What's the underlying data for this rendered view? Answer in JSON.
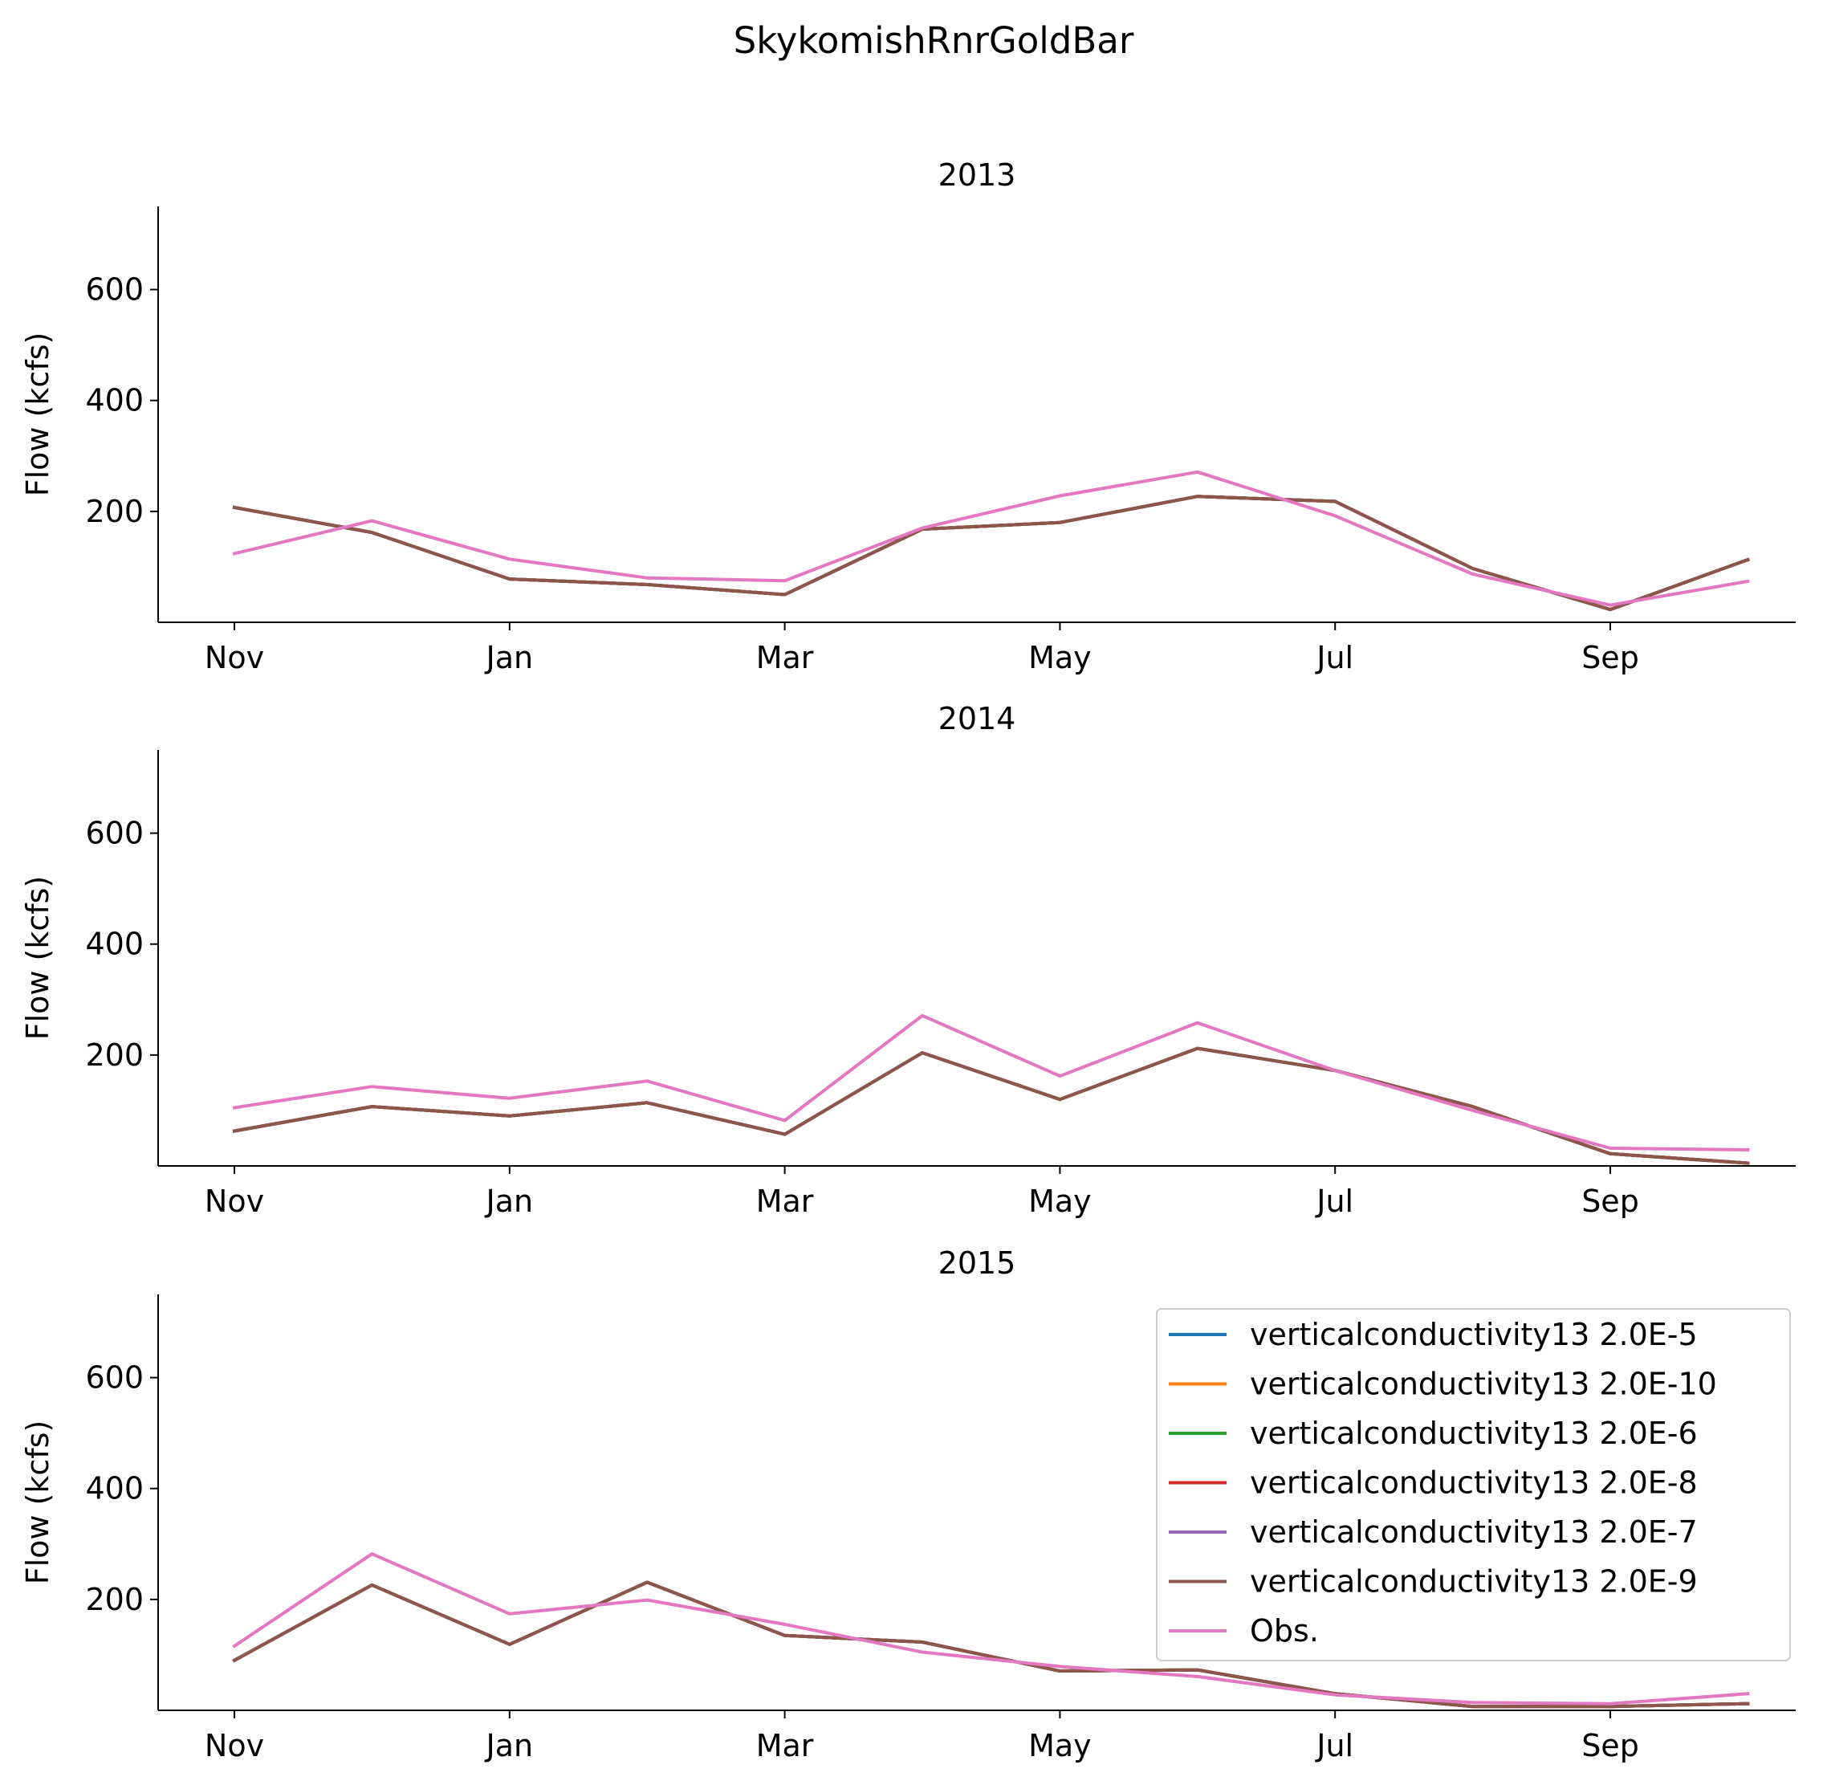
{
  "figure": {
    "suptitle": "SkykomishRnrGoldBar"
  },
  "chart_data": [
    {
      "type": "line",
      "title": "2013",
      "ylabel": "Flow (kcfs)",
      "ylim": [
        0,
        750
      ],
      "yticks": [
        200,
        400,
        600
      ],
      "xticks": [
        "Nov",
        "Jan",
        "Mar",
        "May",
        "Jul",
        "Sep"
      ],
      "x": [
        "Nov",
        "Dec",
        "Jan",
        "Feb",
        "Mar",
        "Apr",
        "May",
        "Jun",
        "Jul",
        "Aug",
        "Sep",
        "Oct"
      ],
      "series": [
        {
          "name": "verticalconductivity13 2.0E-5",
          "color": "#1f77b4",
          "values": [
            207,
            162,
            78,
            68,
            50,
            168,
            180,
            227,
            218,
            97,
            23,
            113
          ]
        },
        {
          "name": "verticalconductivity13 2.0E-10",
          "color": "#ff7f0e",
          "values": [
            207,
            162,
            78,
            68,
            50,
            168,
            180,
            227,
            218,
            97,
            23,
            113
          ]
        },
        {
          "name": "verticalconductivity13 2.0E-6",
          "color": "#2ca02c",
          "values": [
            207,
            162,
            78,
            68,
            50,
            168,
            180,
            227,
            218,
            97,
            23,
            113
          ]
        },
        {
          "name": "verticalconductivity13 2.0E-8",
          "color": "#d62728",
          "values": [
            207,
            162,
            78,
            68,
            50,
            168,
            180,
            227,
            218,
            97,
            23,
            113
          ]
        },
        {
          "name": "verticalconductivity13 2.0E-7",
          "color": "#9467bd",
          "values": [
            207,
            162,
            78,
            68,
            50,
            168,
            180,
            227,
            218,
            97,
            23,
            113
          ]
        },
        {
          "name": "verticalconductivity13 2.0E-9",
          "color": "#8c564b",
          "values": [
            207,
            162,
            78,
            68,
            50,
            168,
            180,
            227,
            218,
            97,
            23,
            113
          ]
        },
        {
          "name": "Obs.",
          "color": "#e377c2",
          "values": [
            124,
            183,
            114,
            80,
            75,
            170,
            228,
            271,
            192,
            87,
            31,
            74
          ]
        }
      ]
    },
    {
      "type": "line",
      "title": "2014",
      "ylabel": "Flow (kcfs)",
      "ylim": [
        0,
        750
      ],
      "yticks": [
        200,
        400,
        600
      ],
      "xticks": [
        "Nov",
        "Jan",
        "Mar",
        "May",
        "Jul",
        "Sep"
      ],
      "x": [
        "Nov",
        "Dec",
        "Jan",
        "Feb",
        "Mar",
        "Apr",
        "May",
        "Jun",
        "Jul",
        "Aug",
        "Sep",
        "Oct"
      ],
      "series": [
        {
          "name": "verticalconductivity13 2.0E-5",
          "color": "#1f77b4",
          "values": [
            63,
            107,
            90,
            114,
            57,
            204,
            120,
            212,
            172,
            107,
            22,
            5
          ]
        },
        {
          "name": "verticalconductivity13 2.0E-10",
          "color": "#ff7f0e",
          "values": [
            63,
            107,
            90,
            114,
            57,
            204,
            120,
            212,
            172,
            107,
            22,
            5
          ]
        },
        {
          "name": "verticalconductivity13 2.0E-6",
          "color": "#2ca02c",
          "values": [
            63,
            107,
            90,
            114,
            57,
            204,
            120,
            212,
            172,
            107,
            22,
            5
          ]
        },
        {
          "name": "verticalconductivity13 2.0E-8",
          "color": "#d62728",
          "values": [
            63,
            107,
            90,
            114,
            57,
            204,
            120,
            212,
            172,
            107,
            22,
            5
          ]
        },
        {
          "name": "verticalconductivity13 2.0E-7",
          "color": "#9467bd",
          "values": [
            63,
            107,
            90,
            114,
            57,
            204,
            120,
            212,
            172,
            107,
            22,
            5
          ]
        },
        {
          "name": "verticalconductivity13 2.0E-9",
          "color": "#8c564b",
          "values": [
            63,
            107,
            90,
            114,
            57,
            204,
            120,
            212,
            172,
            107,
            22,
            5
          ]
        },
        {
          "name": "Obs.",
          "color": "#e377c2",
          "values": [
            105,
            143,
            122,
            153,
            82,
            271,
            162,
            258,
            172,
            100,
            32,
            29
          ]
        }
      ]
    },
    {
      "type": "line",
      "title": "2015",
      "ylabel": "Flow (kcfs)",
      "ylim": [
        0,
        750
      ],
      "yticks": [
        200,
        400,
        600
      ],
      "xticks": [
        "Nov",
        "Jan",
        "Mar",
        "May",
        "Jul",
        "Sep"
      ],
      "x": [
        "Nov",
        "Dec",
        "Jan",
        "Feb",
        "Mar",
        "Apr",
        "May",
        "Jun",
        "Jul",
        "Aug",
        "Sep",
        "Oct"
      ],
      "legend": "upper right",
      "series": [
        {
          "name": "verticalconductivity13 2.0E-5",
          "color": "#1f77b4",
          "values": [
            90,
            226,
            119,
            231,
            135,
            123,
            71,
            73,
            30,
            7,
            7,
            12
          ]
        },
        {
          "name": "verticalconductivity13 2.0E-10",
          "color": "#ff7f0e",
          "values": [
            90,
            226,
            119,
            231,
            135,
            123,
            71,
            73,
            30,
            7,
            7,
            12
          ]
        },
        {
          "name": "verticalconductivity13 2.0E-6",
          "color": "#2ca02c",
          "values": [
            90,
            226,
            119,
            231,
            135,
            123,
            71,
            73,
            30,
            7,
            7,
            12
          ]
        },
        {
          "name": "verticalconductivity13 2.0E-8",
          "color": "#d62728",
          "values": [
            90,
            226,
            119,
            231,
            135,
            123,
            71,
            73,
            30,
            7,
            7,
            12
          ]
        },
        {
          "name": "verticalconductivity13 2.0E-7",
          "color": "#9467bd",
          "values": [
            90,
            226,
            119,
            231,
            135,
            123,
            71,
            73,
            30,
            7,
            7,
            12
          ]
        },
        {
          "name": "verticalconductivity13 2.0E-9",
          "color": "#8c564b",
          "values": [
            90,
            226,
            119,
            231,
            135,
            123,
            71,
            73,
            30,
            7,
            7,
            12
          ]
        },
        {
          "name": "Obs.",
          "color": "#e377c2",
          "values": [
            116,
            282,
            174,
            199,
            155,
            105,
            79,
            61,
            28,
            14,
            12,
            30
          ]
        }
      ]
    }
  ]
}
